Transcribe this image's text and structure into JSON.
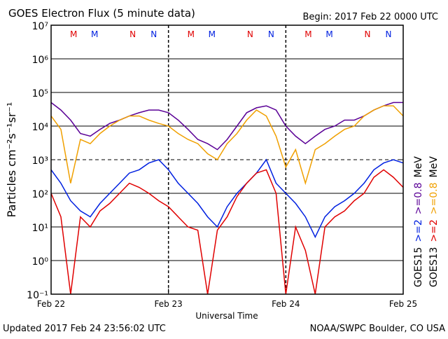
{
  "chart_data": {
    "type": "line",
    "title": "GOES Electron Flux (5 minute data)",
    "subtitle": "Begin: 2017 Feb 22 0000 UTC",
    "xlabel": "Universal Time",
    "ylabel": "Particles cm⁻²s⁻¹sr⁻¹",
    "footer_left": "Updated 2017 Feb 24 23:56:02 UTC",
    "footer_right": "NOAA/SWPC Boulder, CO USA",
    "log_y": true,
    "grid": true,
    "threshold": 1000,
    "xlim": [
      0,
      72
    ],
    "xticks": [
      {
        "value": 0,
        "label": "Feb 22"
      },
      {
        "value": 24,
        "label": "Feb 23"
      },
      {
        "value": 48,
        "label": "Feb 24"
      },
      {
        "value": 72,
        "label": "Feb 25"
      }
    ],
    "ylim": [
      0.1,
      10000000
    ],
    "yticks": [
      {
        "value": 0.1,
        "label": "10⁻¹"
      },
      {
        "value": 1,
        "label": "10⁰"
      },
      {
        "value": 10,
        "label": "10¹"
      },
      {
        "value": 100,
        "label": "10²"
      },
      {
        "value": 1000,
        "label": "10³"
      },
      {
        "value": 10000,
        "label": "10⁴"
      },
      {
        "value": 100000,
        "label": "10⁵"
      },
      {
        "value": 1000000,
        "label": "10⁶"
      },
      {
        "value": 10000000,
        "label": "10⁷"
      }
    ],
    "markers": [
      {
        "label": "M",
        "x": 4.6,
        "color": "#e00000"
      },
      {
        "label": "M",
        "x": 8.9,
        "color": "#0020e0"
      },
      {
        "label": "N",
        "x": 16.7,
        "color": "#e00000"
      },
      {
        "label": "N",
        "x": 21,
        "color": "#0020e0"
      },
      {
        "label": "M",
        "x": 28.6,
        "color": "#e00000"
      },
      {
        "label": "M",
        "x": 32.9,
        "color": "#0020e0"
      },
      {
        "label": "N",
        "x": 40.7,
        "color": "#e00000"
      },
      {
        "label": "N",
        "x": 45,
        "color": "#0020e0"
      },
      {
        "label": "M",
        "x": 52.6,
        "color": "#e00000"
      },
      {
        "label": "M",
        "x": 56.9,
        "color": "#0020e0"
      },
      {
        "label": "N",
        "x": 64.7,
        "color": "#e00000"
      },
      {
        "label": "N",
        "x": 69,
        "color": "#0020e0"
      }
    ],
    "legend_columns": [
      {
        "label": "GOES15",
        "unit": "MeV"
      },
      {
        "label": "GOES13",
        "unit": "MeV"
      }
    ],
    "x": [
      0,
      2,
      4,
      6,
      8,
      10,
      12,
      14,
      16,
      18,
      20,
      22,
      24,
      26,
      28,
      30,
      32,
      34,
      36,
      38,
      40,
      42,
      44,
      46,
      48,
      50,
      52,
      54,
      56,
      58,
      60,
      62,
      64,
      66,
      68,
      70,
      72
    ],
    "series": [
      {
        "name": ">=2",
        "column": 0,
        "color": "#0020e0",
        "values": [
          500,
          200,
          60,
          30,
          20,
          50,
          100,
          200,
          400,
          500,
          800,
          1000,
          500,
          200,
          100,
          50,
          20,
          10,
          40,
          100,
          200,
          400,
          1000,
          200,
          100,
          50,
          20,
          5,
          20,
          40,
          60,
          100,
          200,
          500,
          800,
          1000,
          800
        ]
      },
      {
        "name": ">=0.8",
        "column": 0,
        "color": "#5a0096",
        "values": [
          50000,
          30000,
          15000,
          6000,
          5000,
          8000,
          12000,
          15000,
          20000,
          25000,
          30000,
          30000,
          25000,
          15000,
          8000,
          4000,
          3000,
          2000,
          4000,
          10000,
          25000,
          35000,
          40000,
          30000,
          10000,
          5000,
          3000,
          5000,
          8000,
          10000,
          15000,
          15000,
          20000,
          30000,
          40000,
          50000,
          50000
        ]
      },
      {
        "name": ">=2",
        "column": 1,
        "color": "#e00000",
        "values": [
          100,
          20,
          0.1,
          20,
          10,
          30,
          50,
          100,
          200,
          150,
          100,
          60,
          40,
          20,
          10,
          8,
          0.1,
          8,
          20,
          80,
          200,
          400,
          500,
          100,
          0.1,
          10,
          2,
          0.1,
          10,
          20,
          30,
          60,
          100,
          300,
          500,
          300,
          150
        ]
      },
      {
        "name": ">=0.8",
        "column": 1,
        "color": "#f0a000",
        "values": [
          20000,
          8000,
          200,
          4000,
          3000,
          6000,
          10000,
          15000,
          20000,
          20000,
          15000,
          12000,
          10000,
          6000,
          4000,
          3000,
          1500,
          1000,
          3000,
          6000,
          15000,
          30000,
          20000,
          5000,
          600,
          2000,
          200,
          2000,
          3000,
          5000,
          8000,
          10000,
          20000,
          30000,
          40000,
          40000,
          20000
        ]
      }
    ]
  }
}
